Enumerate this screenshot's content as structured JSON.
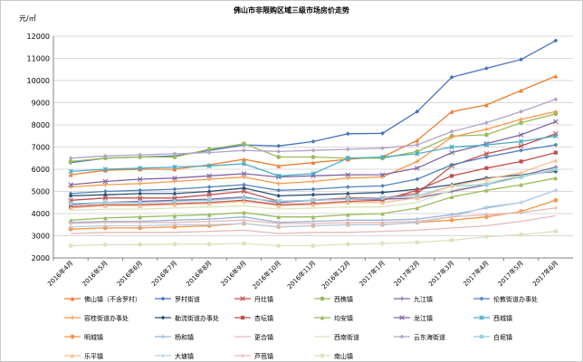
{
  "chart_data": {
    "type": "line",
    "title": "佛山市非限购区域三级市场房价走势",
    "ylabel": "元/㎡",
    "ylim": [
      2000,
      12000
    ],
    "yticks": [
      2000,
      3000,
      4000,
      5000,
      6000,
      7000,
      8000,
      9000,
      10000,
      11000,
      12000
    ],
    "grid": true,
    "legend": "bottom",
    "categories": [
      "2016年4月",
      "2016年5月",
      "2016年6月",
      "2016年7月",
      "2016年8月",
      "2016年9月",
      "2016年10月",
      "2016年11月",
      "2016年12月",
      "2017年1月",
      "2017年2月",
      "2017年3月",
      "2017年4月",
      "2017年5月",
      "2017年6月"
    ],
    "series": [
      {
        "name": "佛山镇（不含罗村）",
        "color": "#ed7d31",
        "marker": "triangle",
        "values": [
          5750,
          5950,
          6000,
          6000,
          6200,
          6450,
          6150,
          6300,
          6450,
          6550,
          7300,
          8600,
          8900,
          9550,
          10200
        ]
      },
      {
        "name": "罗村街道",
        "color": "#4472c4",
        "marker": "diamond",
        "values": [
          6300,
          6500,
          6550,
          6600,
          6850,
          7100,
          7050,
          7250,
          7600,
          7620,
          8600,
          10150,
          10550,
          10950,
          11800
        ]
      },
      {
        "name": "丹灶镇",
        "color": "#c0504d",
        "marker": "x",
        "values": [
          4600,
          4700,
          4700,
          4700,
          4850,
          5000,
          4550,
          4600,
          4700,
          4700,
          4900,
          6150,
          6700,
          7050,
          7600
        ]
      },
      {
        "name": "西樵镇",
        "color": "#9bbb59",
        "marker": "circle",
        "values": [
          6350,
          6500,
          6550,
          6550,
          6900,
          7150,
          6550,
          6550,
          6500,
          6500,
          6800,
          7500,
          7550,
          8100,
          8500
        ]
      },
      {
        "name": "九江镇",
        "color": "#8064a2",
        "marker": "plus",
        "values": [
          4400,
          4500,
          4550,
          4600,
          4650,
          4750,
          4500,
          4600,
          4650,
          4650,
          4700,
          5000,
          5300,
          5700,
          6100
        ]
      },
      {
        "name": "伦教街道办事处",
        "color": "#4f81bd",
        "marker": "diamond",
        "values": [
          4900,
          5000,
          5050,
          5100,
          5200,
          5300,
          5050,
          5100,
          5200,
          5250,
          5550,
          6200,
          6550,
          6850,
          7100
        ]
      },
      {
        "name": "容桂街道办事处",
        "color": "#f79646",
        "marker": "plus",
        "values": [
          5200,
          5300,
          5350,
          5450,
          5550,
          5650,
          5350,
          5450,
          5600,
          5650,
          6350,
          7450,
          7800,
          8250,
          8600
        ]
      },
      {
        "name": "勒流街道办事处",
        "color": "#2c4d75",
        "marker": "diamond",
        "values": [
          4800,
          4850,
          4900,
          4900,
          5000,
          5150,
          4800,
          4850,
          4900,
          4950,
          5100,
          5300,
          5600,
          5750,
          5900
        ]
      },
      {
        "name": "杏坛镇",
        "color": "#c0504d",
        "marker": "square",
        "values": [
          4300,
          4400,
          4400,
          4450,
          4500,
          4600,
          4400,
          4450,
          4550,
          4600,
          5050,
          5700,
          6050,
          6350,
          6750
        ]
      },
      {
        "name": "均安镇",
        "color": "#9bbb59",
        "marker": "triangle",
        "values": [
          3700,
          3800,
          3850,
          3900,
          3950,
          4050,
          3850,
          3850,
          3950,
          4000,
          4250,
          4750,
          5050,
          5300,
          5600
        ]
      },
      {
        "name": "龙江镇",
        "color": "#8064a2",
        "marker": "x",
        "values": [
          5300,
          5450,
          5550,
          5600,
          5700,
          5800,
          5650,
          5700,
          5750,
          5750,
          6050,
          6750,
          7150,
          7550,
          8150
        ]
      },
      {
        "name": "西城镇",
        "color": "#4bacc6",
        "marker": "star",
        "values": [
          5900,
          6000,
          6050,
          6100,
          6150,
          6250,
          5700,
          5800,
          6500,
          6550,
          6700,
          7000,
          7100,
          7250,
          7500
        ]
      },
      {
        "name": "明城镇",
        "color": "#f79646",
        "marker": "circle",
        "values": [
          3300,
          3350,
          3350,
          3400,
          3450,
          3550,
          3400,
          3450,
          3500,
          3500,
          3600,
          3700,
          3850,
          4100,
          4600
        ]
      },
      {
        "name": "杨和镇",
        "color": "#95b3d7",
        "marker": "plus",
        "values": [
          3600,
          3650,
          3650,
          3700,
          3750,
          3850,
          3600,
          3650,
          3700,
          3700,
          3750,
          3950,
          4250,
          4500,
          5050
        ]
      },
      {
        "name": "更合镇",
        "color": "#e6b9b8",
        "marker": "none",
        "values": [
          3100,
          3150,
          3150,
          3150,
          3200,
          3250,
          3100,
          3150,
          3150,
          3200,
          3250,
          3350,
          3450,
          3650,
          3900
        ]
      },
      {
        "name": "西南街道",
        "color": "#d7e4bd",
        "marker": "none",
        "values": [
          4150,
          4200,
          4200,
          4250,
          4300,
          4350,
          4200,
          4250,
          4300,
          4300,
          4500,
          5050,
          5400,
          5700,
          5950
        ]
      },
      {
        "name": "云东海街道",
        "color": "#b3a2c7",
        "marker": "diamond",
        "values": [
          6500,
          6600,
          6650,
          6700,
          6750,
          6850,
          6800,
          6850,
          6900,
          6950,
          7100,
          7700,
          8100,
          8600,
          9150
        ]
      },
      {
        "name": "白坭镇",
        "color": "#93cddd",
        "marker": "square",
        "values": [
          4450,
          4500,
          4500,
          4550,
          4600,
          4700,
          4550,
          4600,
          4650,
          4700,
          4800,
          5250,
          5300,
          5650,
          6000
        ]
      },
      {
        "name": "乐平镇",
        "color": "#fac090",
        "marker": "triangle",
        "values": [
          4250,
          4350,
          4350,
          4400,
          4450,
          4550,
          4350,
          4400,
          4500,
          4500,
          4700,
          5250,
          5550,
          5850,
          6400
        ]
      },
      {
        "name": "大塘镇",
        "color": "#b9cde5",
        "marker": "plus",
        "values": [
          3400,
          3450,
          3450,
          3500,
          3500,
          3550,
          3400,
          3450,
          3500,
          3500,
          3600,
          3850,
          4300,
          4500,
          5050
        ]
      },
      {
        "name": "芦苞镇",
        "color": "#e6b9b8",
        "marker": "plus",
        "values": [
          3550,
          3600,
          3600,
          3600,
          3650,
          3700,
          3550,
          3550,
          3600,
          3600,
          3650,
          3850,
          3950,
          4050,
          4250
        ]
      },
      {
        "name": "南山镇",
        "color": "#d7e4bd",
        "marker": "circle",
        "values": [
          2550,
          2600,
          2600,
          2620,
          2620,
          2650,
          2550,
          2550,
          2620,
          2650,
          2700,
          2800,
          2950,
          3050,
          3200
        ]
      }
    ]
  }
}
